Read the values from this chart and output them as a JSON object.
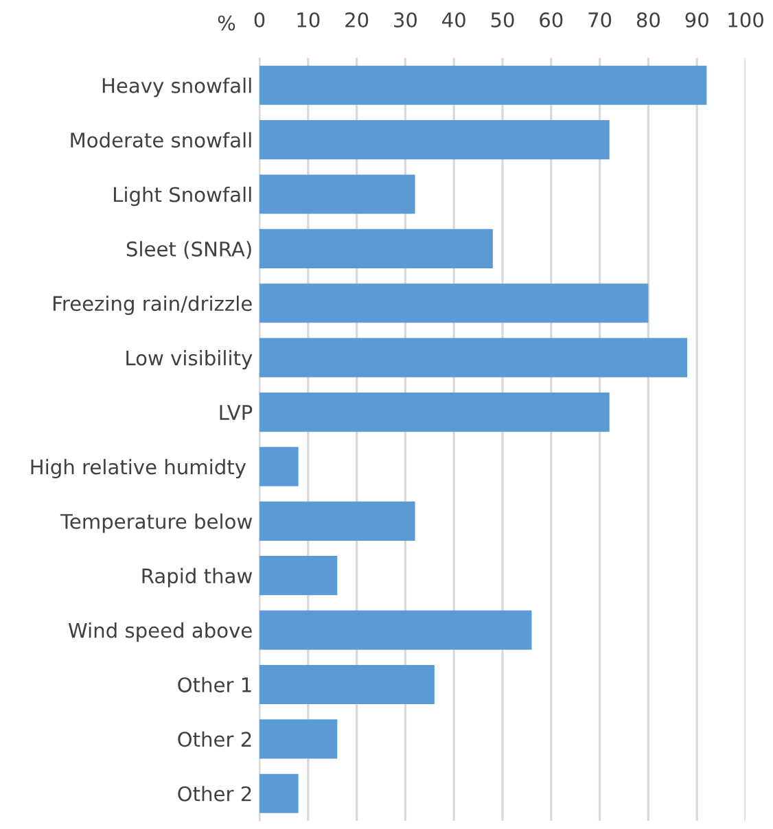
{
  "chart_data": {
    "type": "bar",
    "orientation": "horizontal",
    "xlabel": "%",
    "categories": [
      "Heavy snowfall",
      "Moderate snowfall",
      "Light Snowfall",
      "Sleet (SNRA)",
      "Freezing rain/drizzle",
      "Low visibility",
      "LVP",
      "High relative humidty ",
      "Temperature below",
      "Rapid thaw",
      "Wind speed above",
      "Other 1",
      "Other 2",
      "Other 2"
    ],
    "values": [
      92,
      72,
      32,
      48,
      80,
      88,
      72,
      8,
      32,
      16,
      56,
      36,
      16,
      8
    ],
    "color": "#5b9bd5",
    "xlim": [
      0,
      100
    ],
    "xticks": [
      0,
      10,
      20,
      30,
      40,
      50,
      60,
      70,
      80,
      90,
      100
    ],
    "grid": "x"
  }
}
